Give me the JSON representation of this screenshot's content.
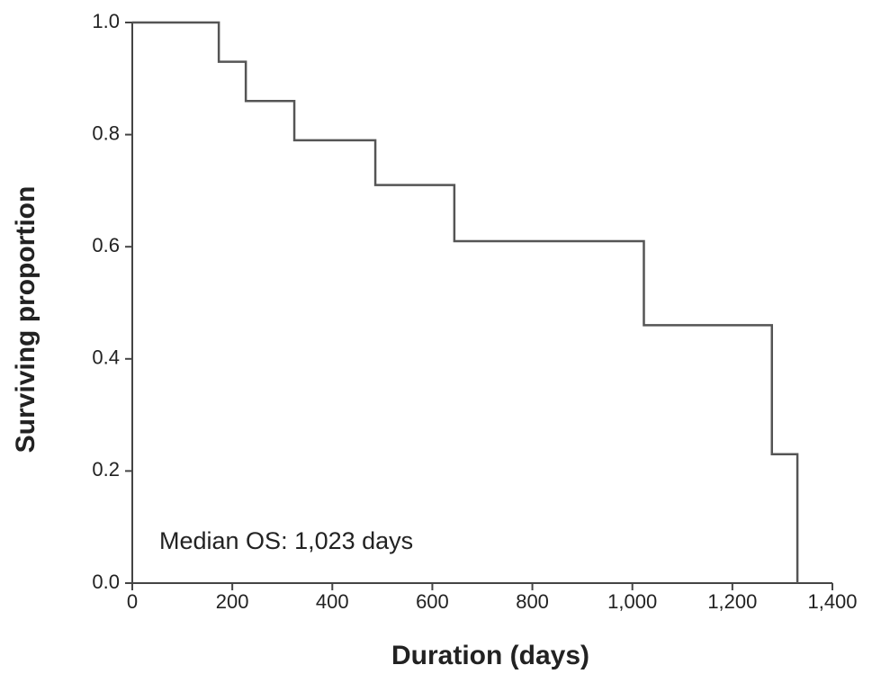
{
  "chart_data": {
    "type": "line",
    "step": "post",
    "x_label": "Duration (days)",
    "y_label": "Surviving proportion",
    "annotation": "Median OS: 1,023 days",
    "x": [
      0,
      173,
      227,
      324,
      486,
      644,
      1023,
      1279,
      1330
    ],
    "values": [
      1.0,
      0.93,
      0.86,
      0.79,
      0.71,
      0.61,
      0.46,
      0.23,
      0.0
    ],
    "color": "#555555",
    "xlim": [
      0,
      1400
    ],
    "xticks": [
      0,
      200,
      400,
      600,
      800,
      {
        "value": 1000,
        "label": "1,000"
      },
      {
        "value": 1200,
        "label": "1,200"
      },
      {
        "value": 1400,
        "label": "1,400"
      }
    ],
    "ylim": [
      0,
      1
    ],
    "yticks": [
      {
        "value": 0,
        "label": "0.0"
      },
      0.2,
      0.4,
      0.6,
      0.8,
      {
        "value": 1,
        "label": "1.0"
      }
    ],
    "grid": false
  }
}
